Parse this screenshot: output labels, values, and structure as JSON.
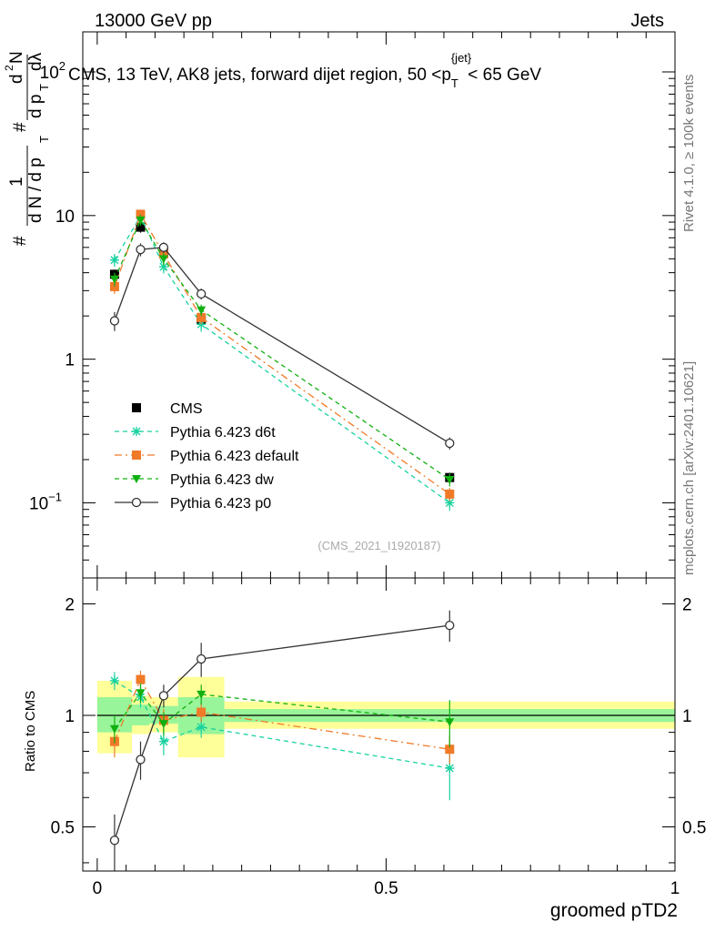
{
  "header": {
    "energy": "13000 GeV pp",
    "category": "Jets"
  },
  "side": {
    "rivet": "Rivet 4.1.0, ≥ 100k events",
    "mcplots": "mcplots.cern.ch [arXiv:2401.10621]"
  },
  "chart_data": [
    {
      "type": "line",
      "title": "CMS, 13 TeV, AK8 jets, forward dijet region, 50 < p_T^{jet} < 65 GeV",
      "title_parts": {
        "pre": "CMS, 13 TeV, AK8 jets, forward dijet region, 50 <p",
        "sub": "T",
        "sup": "{jet}",
        "post": "< 65 GeV"
      },
      "ylabel": "1/dN/dp_T # d2N/dp_T dlambda",
      "ylabel_parts": [
        "#",
        "1",
        "d N / d p",
        "T",
        "#",
        "d p",
        "T",
        "dλ",
        "d",
        "2",
        "N"
      ],
      "yscale": "log",
      "ylim": [
        0.03,
        190
      ],
      "xlim": [
        -0.025,
        1.0
      ],
      "ytick_labels": [
        {
          "value": 100,
          "label": "10",
          "exp": "2"
        },
        {
          "value": 10,
          "label": "10",
          "exp": ""
        },
        {
          "value": 1,
          "label": "1",
          "exp": ""
        },
        {
          "value": 0.1,
          "label": "10",
          "exp": "−1"
        }
      ],
      "watermark": "(CMS_2021_I1920187)",
      "legend_position": "lower-left",
      "x": [
        0.03,
        0.075,
        0.115,
        0.18,
        0.61
      ],
      "series": [
        {
          "name": "CMS",
          "color": "#000000",
          "marker": "square",
          "line": "none",
          "values": [
            3.9,
            8.3,
            5.5,
            1.9,
            0.15
          ],
          "errors": [
            0.3,
            0.7,
            0.45,
            0.15,
            0.012
          ]
        },
        {
          "name": "Pythia 6.423 d6t",
          "color": "#19d2a0",
          "marker": "star",
          "line": "dashed",
          "values": [
            4.9,
            9.9,
            4.4,
            1.75,
            0.1
          ],
          "errors": [
            0.5,
            0.8,
            0.45,
            0.2,
            0.012
          ]
        },
        {
          "name": "Pythia 6.423 default",
          "color": "#f07a28",
          "marker": "square",
          "line": "dashdot",
          "values": [
            3.2,
            10.2,
            5.4,
            1.95,
            0.115
          ],
          "errors": [
            0.35,
            0.8,
            0.5,
            0.2,
            0.012
          ]
        },
        {
          "name": "Pythia 6.423 dw",
          "color": "#10b010",
          "marker": "triangle-down",
          "line": "dashed",
          "values": [
            3.6,
            9.3,
            5.0,
            2.2,
            0.145
          ],
          "errors": [
            0.4,
            0.8,
            0.5,
            0.2,
            0.015
          ]
        },
        {
          "name": "Pythia 6.423 p0",
          "color": "#333333",
          "marker": "circle-open",
          "line": "solid",
          "values": [
            1.85,
            5.8,
            6.0,
            2.85,
            0.26
          ],
          "errors": [
            0.28,
            0.6,
            0.5,
            0.25,
            0.025
          ]
        }
      ]
    },
    {
      "type": "line",
      "ylabel": "Ratio to CMS",
      "xlabel": "groomed pTD2",
      "yscale": "log",
      "ylim": [
        0.38,
        2.35
      ],
      "xlim": [
        -0.025,
        1.0
      ],
      "ytick_labels": [
        {
          "value": 2,
          "label": "2"
        },
        {
          "value": 1,
          "label": "1"
        },
        {
          "value": 0.5,
          "label": "0.5"
        }
      ],
      "xtick_labels": [
        {
          "value": 0,
          "label": "0"
        },
        {
          "value": 0.5,
          "label": "0.5"
        },
        {
          "value": 1,
          "label": "1"
        }
      ],
      "bands": [
        {
          "x0": 0.0,
          "x1": 0.06,
          "green": [
            0.9,
            1.12
          ],
          "yellow": [
            0.79,
            1.24
          ]
        },
        {
          "x0": 0.06,
          "x1": 0.09,
          "green": [
            0.94,
            1.07
          ],
          "yellow": [
            0.89,
            1.13
          ]
        },
        {
          "x0": 0.09,
          "x1": 0.14,
          "green": [
            0.95,
            1.06
          ],
          "yellow": [
            0.9,
            1.12
          ]
        },
        {
          "x0": 0.14,
          "x1": 0.22,
          "green": [
            0.89,
            1.12
          ],
          "yellow": [
            0.77,
            1.27
          ]
        },
        {
          "x0": 0.22,
          "x1": 1.0,
          "green": [
            0.96,
            1.04
          ],
          "yellow": [
            0.92,
            1.09
          ]
        }
      ],
      "x": [
        0.03,
        0.075,
        0.115,
        0.18,
        0.61
      ],
      "series": [
        {
          "name": "Pythia 6.423 d6t",
          "values": [
            1.24,
            1.12,
            0.85,
            0.93,
            0.72
          ],
          "errors": [
            0.07,
            0.07,
            0.07,
            0.06,
            0.13
          ]
        },
        {
          "name": "Pythia 6.423 default",
          "values": [
            0.85,
            1.25,
            0.97,
            1.02,
            0.81
          ],
          "errors": [
            0.08,
            0.07,
            0.07,
            0.06,
            0.07
          ]
        },
        {
          "name": "Pythia 6.423 dw",
          "values": [
            0.92,
            1.15,
            0.95,
            1.14,
            0.96
          ],
          "errors": [
            0.08,
            0.07,
            0.07,
            0.07,
            0.14
          ]
        },
        {
          "name": "Pythia 6.423 p0",
          "values": [
            0.46,
            0.76,
            1.13,
            1.42,
            1.75
          ],
          "errors": [
            0.08,
            0.09,
            0.08,
            0.15,
            0.17
          ]
        }
      ]
    }
  ]
}
